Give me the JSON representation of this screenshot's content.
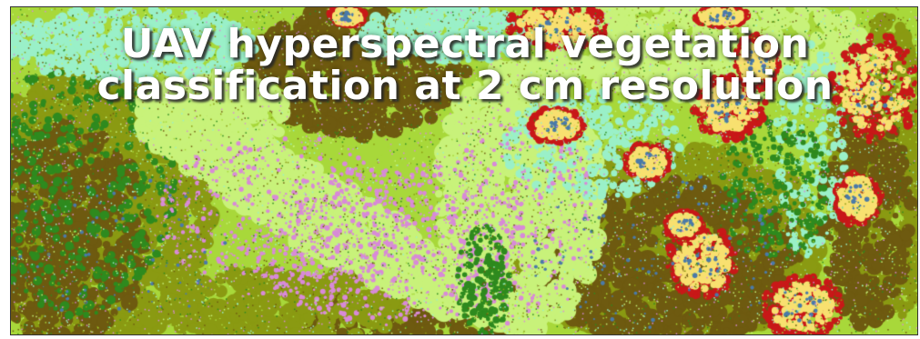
{
  "title": {
    "line1": "UAV hyperspectral vegetation",
    "line2": "classification at 2 cm resolution"
  },
  "classification_palette": {
    "light_green": "#c8f27a",
    "yellow_green": "#a8d83a",
    "olive": "#8a9a12",
    "brown": "#6e5a10",
    "dark_green": "#2e8a1e",
    "aqua": "#9af0c8",
    "pink": "#d88ad8",
    "red": "#c81818",
    "yellow": "#f8e070",
    "steel_blue": "#4a7aa8"
  }
}
